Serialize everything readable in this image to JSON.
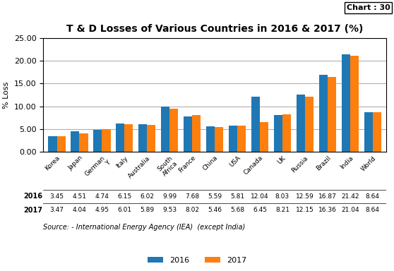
{
  "chart_data": {
    "type": "bar",
    "title": "T & D Losses of Various Countries in 2016 & 2017 (%)",
    "annotations": [
      "Chart : 30",
      "Source: - International Energy Agency (IEA)  (except India)"
    ],
    "ylabel": "% Loss",
    "categories": [
      "Korea",
      "Japan",
      "German\nY",
      "Italy",
      "Australia",
      "South\nAfrica",
      "France",
      "China",
      "USA",
      "Canada",
      "UK",
      "Russia",
      "Brazil",
      "India",
      "World"
    ],
    "series": [
      {
        "name": "2016",
        "values": [
          3.45,
          4.51,
          4.74,
          6.15,
          6.02,
          9.99,
          7.68,
          5.59,
          5.81,
          12.04,
          8.03,
          12.59,
          16.87,
          21.42,
          8.64
        ]
      },
      {
        "name": "2017",
        "values": [
          3.47,
          4.04,
          4.95,
          6.01,
          5.89,
          9.53,
          8.02,
          5.46,
          5.68,
          6.45,
          8.21,
          12.15,
          16.36,
          21.04,
          8.64
        ]
      }
    ],
    "ylim": [
      0,
      25
    ],
    "yticks": [
      {
        "value": 0,
        "label": "0.00"
      },
      {
        "value": 5,
        "label": "5.00"
      },
      {
        "value": 10,
        "label": "10.00"
      },
      {
        "value": 15,
        "label": "15.00"
      },
      {
        "value": 20,
        "label": "20.00"
      },
      {
        "value": 25,
        "label": "25.00"
      }
    ],
    "grid": true,
    "legend": "lower center",
    "data_labels": true
  }
}
